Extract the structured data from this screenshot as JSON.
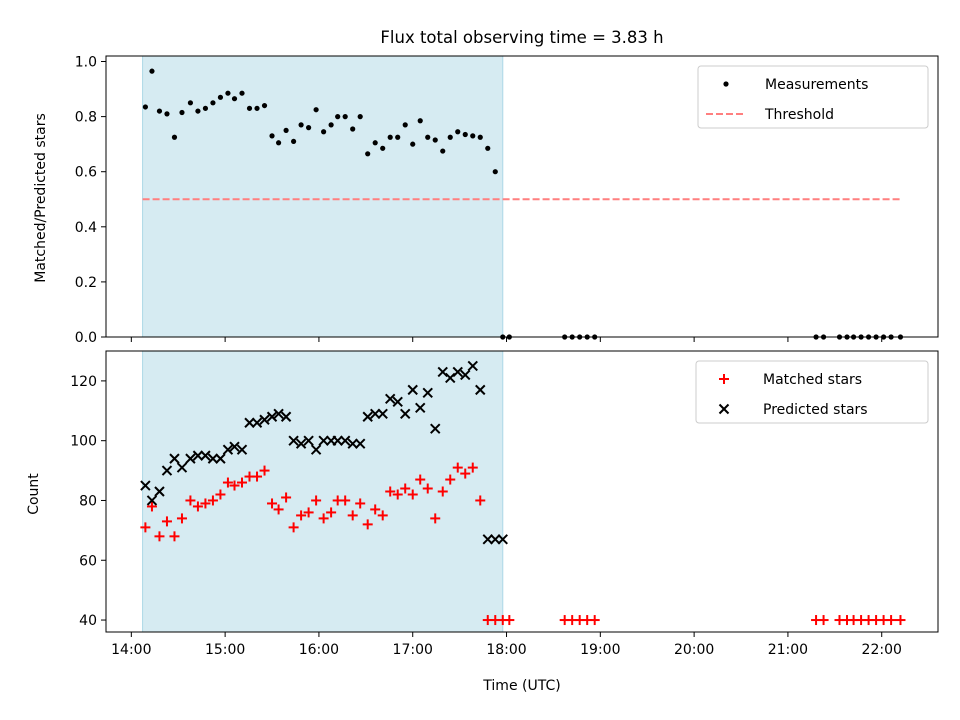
{
  "title": "Flux total observing time = 3.83 h",
  "xlabel": "Time (UTC)",
  "colors": {
    "shade": "#add8e6",
    "matched": "#ff0000",
    "predicted": "#000000",
    "threshold": "#ff7f7f",
    "measurement": "#000000"
  },
  "chart_data": [
    {
      "type": "scatter",
      "ylabel": "Matched/Predicted stars",
      "ylim": [
        0,
        1.02
      ],
      "xlim": [
        13.73,
        22.6
      ],
      "x_unit": "hours UTC",
      "shaded_interval": [
        14.12,
        17.96
      ],
      "yticks": [
        "0.0",
        "0.2",
        "0.4",
        "0.6",
        "0.8",
        "1.0"
      ],
      "legend": {
        "placement": "upper right",
        "entries": [
          "Measurements",
          "Threshold"
        ]
      },
      "threshold": {
        "name": "Threshold",
        "y": 0.5,
        "x": [
          14.12,
          22.2
        ]
      },
      "series": [
        {
          "name": "Measurements",
          "x": [
            14.15,
            14.22,
            14.3,
            14.38,
            14.46,
            14.54,
            14.63,
            14.71,
            14.79,
            14.87,
            14.95,
            15.03,
            15.1,
            15.18,
            15.26,
            15.34,
            15.42,
            15.5,
            15.57,
            15.65,
            15.73,
            15.81,
            15.89,
            15.97,
            16.05,
            16.13,
            16.2,
            16.28,
            16.36,
            16.44,
            16.52,
            16.6,
            16.68,
            16.76,
            16.84,
            16.92,
            17.0,
            17.08,
            17.16,
            17.24,
            17.32,
            17.4,
            17.48,
            17.56,
            17.64,
            17.72,
            17.8,
            17.88,
            17.96,
            18.03,
            18.62,
            18.7,
            18.78,
            18.86,
            18.94,
            21.3,
            21.38,
            21.55,
            21.63,
            21.7,
            21.78,
            21.86,
            21.94,
            22.02,
            22.1,
            22.2
          ],
          "y": [
            0.835,
            0.965,
            0.82,
            0.81,
            0.725,
            0.815,
            0.85,
            0.82,
            0.83,
            0.85,
            0.87,
            0.885,
            0.865,
            0.885,
            0.83,
            0.83,
            0.84,
            0.73,
            0.705,
            0.75,
            0.71,
            0.77,
            0.76,
            0.825,
            0.745,
            0.77,
            0.8,
            0.8,
            0.755,
            0.8,
            0.665,
            0.705,
            0.685,
            0.725,
            0.725,
            0.77,
            0.7,
            0.785,
            0.725,
            0.715,
            0.675,
            0.725,
            0.745,
            0.735,
            0.73,
            0.725,
            0.685,
            0.6,
            0.0,
            0.0,
            0.0,
            0.0,
            0.0,
            0.0,
            0.0,
            0.0,
            0.0,
            0.0,
            0.0,
            0.0,
            0.0,
            0.0,
            0.0,
            0.0,
            0.0,
            0.0
          ]
        }
      ]
    },
    {
      "type": "scatter",
      "ylabel": "Count",
      "ylim": [
        36,
        130
      ],
      "xlim": [
        13.73,
        22.6
      ],
      "x_unit": "hours UTC",
      "shaded_interval": [
        14.12,
        17.96
      ],
      "yticks": [
        "40",
        "60",
        "80",
        "100",
        "120"
      ],
      "xticks": [
        "14:00",
        "15:00",
        "16:00",
        "17:00",
        "18:00",
        "19:00",
        "20:00",
        "21:00",
        "22:00"
      ],
      "legend": {
        "placement": "upper right",
        "entries": [
          "Matched stars",
          "Predicted stars"
        ]
      },
      "series": [
        {
          "name": "Matched stars",
          "marker": "+",
          "x": [
            14.15,
            14.22,
            14.3,
            14.38,
            14.46,
            14.54,
            14.63,
            14.71,
            14.79,
            14.87,
            14.95,
            15.03,
            15.1,
            15.18,
            15.26,
            15.34,
            15.42,
            15.5,
            15.57,
            15.65,
            15.73,
            15.81,
            15.89,
            15.97,
            16.05,
            16.13,
            16.2,
            16.28,
            16.36,
            16.44,
            16.52,
            16.6,
            16.68,
            16.76,
            16.84,
            16.92,
            17.0,
            17.08,
            17.16,
            17.24,
            17.32,
            17.4,
            17.48,
            17.56,
            17.64,
            17.72,
            17.8,
            17.88,
            17.96,
            18.03,
            18.62,
            18.7,
            18.78,
            18.86,
            18.94,
            21.3,
            21.38,
            21.55,
            21.63,
            21.7,
            21.78,
            21.86,
            21.94,
            22.02,
            22.1,
            22.2
          ],
          "y": [
            71,
            78,
            68,
            73,
            68,
            74,
            80,
            78,
            79,
            80,
            82,
            86,
            85,
            86,
            88,
            88,
            90,
            79,
            77,
            81,
            71,
            75,
            76,
            80,
            74,
            76,
            80,
            80,
            75,
            79,
            72,
            77,
            75,
            83,
            82,
            84,
            82,
            87,
            84,
            74,
            83,
            87,
            91,
            89,
            91,
            80,
            40,
            40,
            40,
            40,
            40,
            40,
            40,
            40,
            40,
            40,
            40,
            40,
            40,
            40,
            40,
            40,
            40,
            40,
            40,
            40
          ]
        },
        {
          "name": "Predicted stars",
          "marker": "x",
          "x": [
            14.15,
            14.22,
            14.3,
            14.38,
            14.46,
            14.54,
            14.63,
            14.71,
            14.79,
            14.87,
            14.95,
            15.03,
            15.1,
            15.18,
            15.26,
            15.34,
            15.42,
            15.5,
            15.57,
            15.65,
            15.73,
            15.81,
            15.89,
            15.97,
            16.05,
            16.13,
            16.2,
            16.28,
            16.36,
            16.44,
            16.52,
            16.6,
            16.68,
            16.76,
            16.84,
            16.92,
            17.0,
            17.08,
            17.16,
            17.24,
            17.32,
            17.4,
            17.48,
            17.56,
            17.64,
            17.72,
            17.8,
            17.88,
            17.96
          ],
          "y": [
            85,
            80,
            83,
            90,
            94,
            91,
            94,
            95,
            95,
            94,
            94,
            97,
            98,
            97,
            106,
            106,
            107,
            108,
            109,
            108,
            100,
            99,
            100,
            97,
            100,
            100,
            100,
            100,
            99,
            99,
            108,
            109,
            109,
            114,
            113,
            109,
            117,
            111,
            116,
            104,
            123,
            121,
            123,
            122,
            125,
            117,
            67,
            67,
            67
          ]
        }
      ]
    }
  ]
}
